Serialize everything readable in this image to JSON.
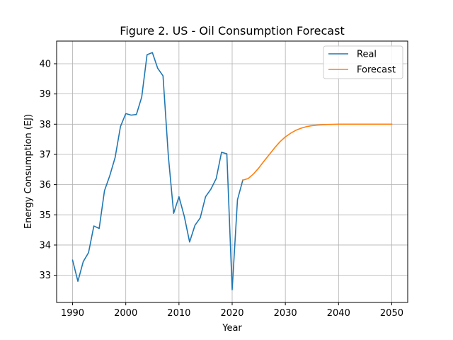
{
  "chart_data": {
    "type": "line",
    "title": "Figure 2. US - Oil Consumption Forecast",
    "xlabel": "Year",
    "ylabel": "Energy Consumption (EJ)",
    "xlim": [
      1987,
      2053
    ],
    "ylim": [
      32.1,
      40.75
    ],
    "x_ticks": [
      1990,
      2000,
      2010,
      2020,
      2030,
      2040,
      2050
    ],
    "y_ticks": [
      33,
      34,
      35,
      36,
      37,
      38,
      39,
      40
    ],
    "grid": true,
    "legend_position": "top-right",
    "series": [
      {
        "name": "Real",
        "color": "#1f77b4",
        "x": [
          1990,
          1991,
          1992,
          1993,
          1994,
          1995,
          1996,
          1997,
          1998,
          1999,
          2000,
          2001,
          2002,
          2003,
          2004,
          2005,
          2006,
          2007,
          2008,
          2009,
          2010,
          2011,
          2012,
          2013,
          2014,
          2015,
          2016,
          2017,
          2018,
          2019,
          2020,
          2021,
          2022
        ],
        "values": [
          33.5,
          32.8,
          33.45,
          33.75,
          34.63,
          34.55,
          35.8,
          36.3,
          36.9,
          37.92,
          38.35,
          38.3,
          38.32,
          38.9,
          40.3,
          40.37,
          39.85,
          39.6,
          36.95,
          35.05,
          35.6,
          34.95,
          34.1,
          34.65,
          34.9,
          35.6,
          35.85,
          36.2,
          37.07,
          37.02,
          32.52,
          35.5,
          36.15
        ]
      },
      {
        "name": "Forecast",
        "color": "#ff7f0e",
        "x": [
          2022,
          2023,
          2024,
          2025,
          2026,
          2027,
          2028,
          2029,
          2030,
          2031,
          2032,
          2033,
          2034,
          2035,
          2036,
          2037,
          2038,
          2040,
          2045,
          2050
        ],
        "values": [
          36.15,
          36.2,
          36.35,
          36.55,
          36.78,
          37.0,
          37.22,
          37.42,
          37.58,
          37.7,
          37.8,
          37.87,
          37.92,
          37.95,
          37.97,
          37.98,
          37.99,
          38.0,
          38.0,
          38.0
        ]
      }
    ]
  }
}
